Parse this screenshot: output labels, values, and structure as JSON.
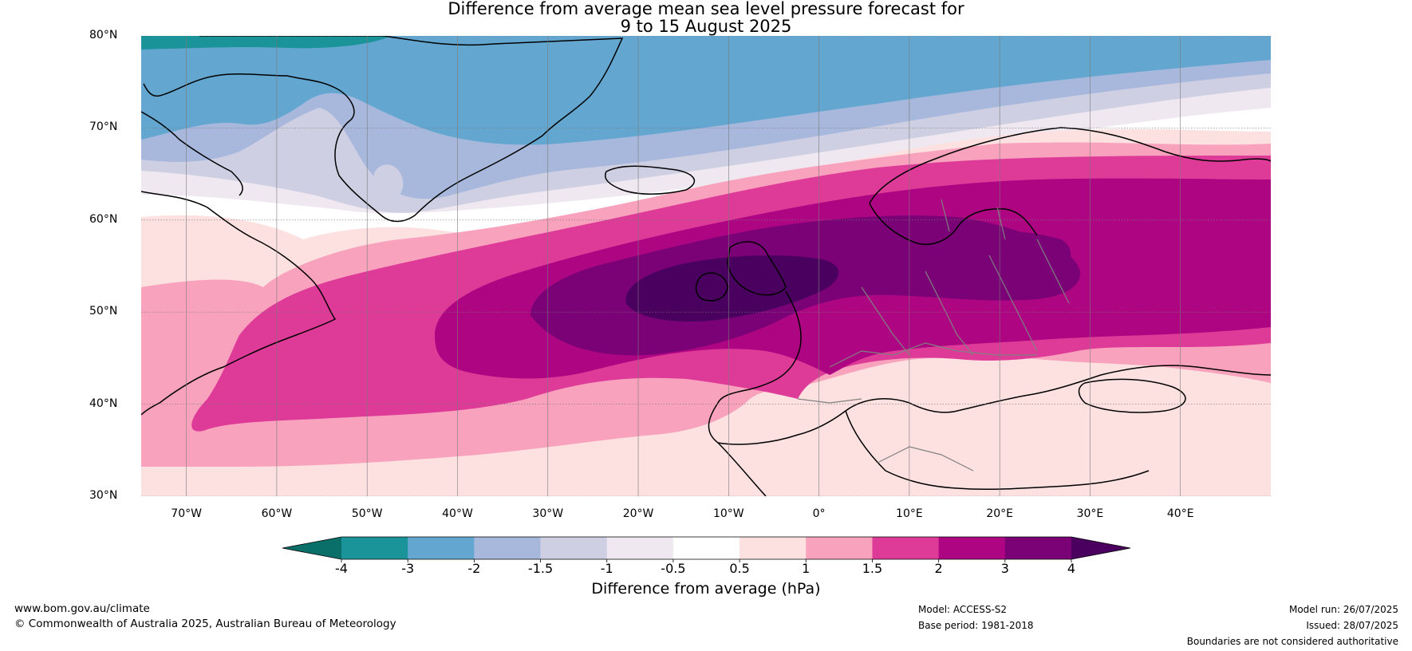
{
  "title": {
    "line1": "Difference from average mean sea level pressure forecast for",
    "line2": "9 to 15 August 2025"
  },
  "axes": {
    "latitude_labels": [
      "80°N",
      "70°N",
      "60°N",
      "50°N",
      "40°N",
      "30°N"
    ],
    "longitude_labels": [
      "70°W",
      "60°W",
      "50°W",
      "40°W",
      "30°W",
      "20°W",
      "10°W",
      "0°",
      "10°E",
      "20°E",
      "30°E",
      "40°E"
    ],
    "lat_range": [
      30,
      80
    ],
    "lon_range": [
      -75,
      50
    ],
    "grid": true
  },
  "colorbar": {
    "title": "Difference from average (hPa)",
    "tick_labels": [
      "-4",
      "-3",
      "-2",
      "-1.5",
      "-1",
      "-0.5",
      "0.5",
      "1",
      "1.5",
      "2",
      "3",
      "4"
    ],
    "colors": [
      "#0a6f69",
      "#1a9399",
      "#63a7d1",
      "#a7b8dc",
      "#cfcfe3",
      "#efe8f1",
      "#ffffff",
      "#fde0e0",
      "#f9a2bd",
      "#de3b99",
      "#ae0683",
      "#7a0176",
      "#4a005f"
    ]
  },
  "footer": {
    "website": "www.bom.gov.au/climate",
    "copyright": "© Commonwealth of Australia 2025, Australian Bureau of Meteorology",
    "model": "Model: ACCESS-S2",
    "base_period": "Base period: 1981-2018",
    "model_run": "Model run: 26/07/2025",
    "issued": "Issued: 28/07/2025",
    "disclaimer": "Boundaries are not considered authoritative"
  }
}
